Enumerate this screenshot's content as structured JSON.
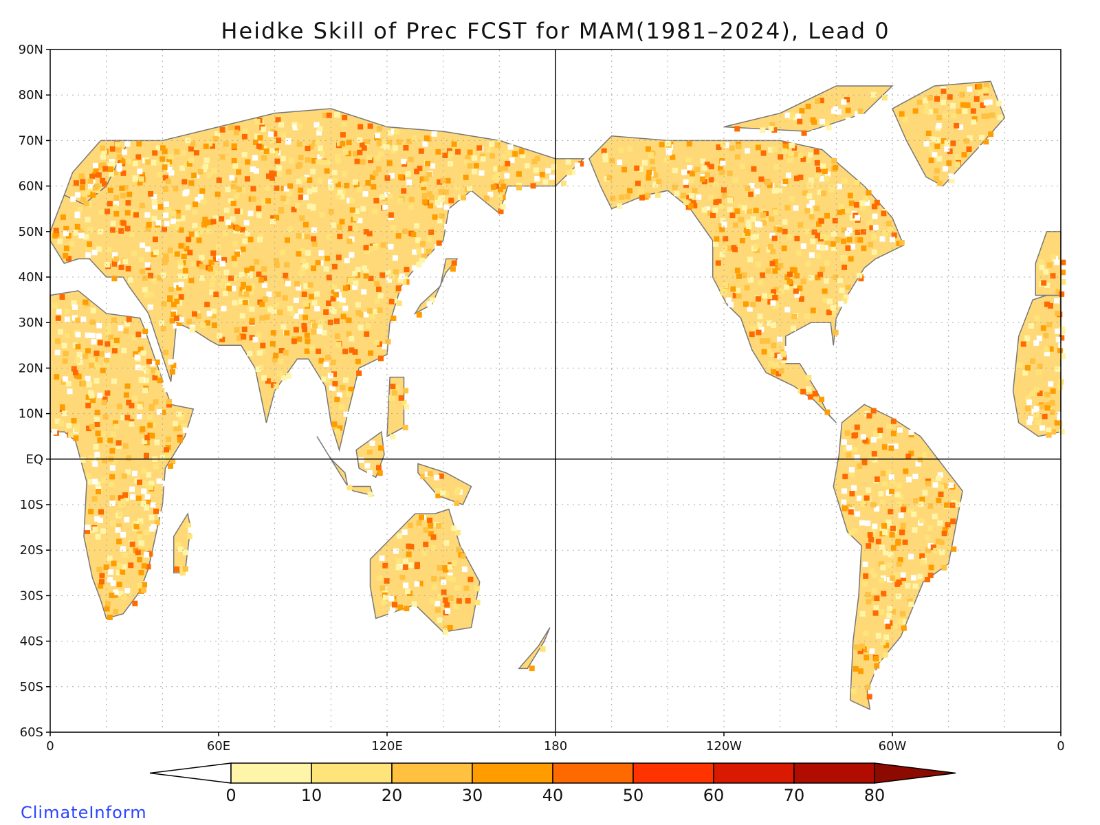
{
  "title": "Heidke Skill of Prec FCST for MAM(1981–2024), Lead 0",
  "credit": "ClimateInform",
  "map": {
    "projection": "cylindrical equidistant, Pacific-centered",
    "lon_range": [
      0,
      360
    ],
    "lat_range": [
      -60,
      90
    ],
    "grid": "dotted, every 20° lon and 10° lat",
    "reference_lines": [
      "Equator",
      "180"
    ],
    "y_ticks": [
      "90N",
      "80N",
      "70N",
      "60N",
      "50N",
      "40N",
      "30N",
      "20N",
      "10N",
      "EQ",
      "10S",
      "20S",
      "30S",
      "40S",
      "50S",
      "60S"
    ],
    "x_ticks": [
      "0",
      "60E",
      "120E",
      "180",
      "120W",
      "60W",
      "0"
    ]
  },
  "colorbar": {
    "levels": [
      "0",
      "10",
      "20",
      "30",
      "40",
      "50",
      "60",
      "70",
      "80"
    ],
    "colors": [
      "#ffffff",
      "#fff5a8",
      "#ffe47a",
      "#ffc13f",
      "#ff9d00",
      "#ff6a00",
      "#ff3300",
      "#d91a00",
      "#b00d00",
      "#8c0a00"
    ]
  }
}
